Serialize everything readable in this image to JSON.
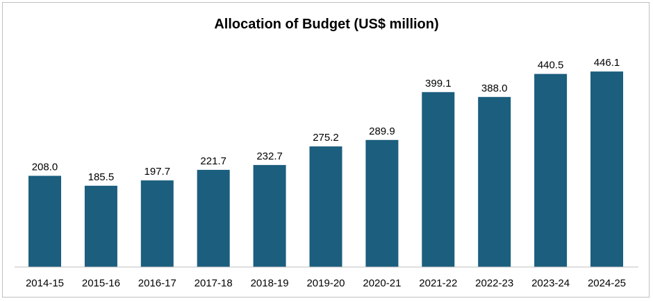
{
  "chart_data": {
    "type": "bar",
    "title": "Allocation of Budget (US$ million)",
    "xlabel": "",
    "ylabel": "",
    "categories": [
      "2014-15",
      "2015-16",
      "2016-17",
      "2017-18",
      "2018-19",
      "2019-20",
      "2020-21",
      "2021-22",
      "2022-23",
      "2023-24",
      "2024-25"
    ],
    "values": [
      208.0,
      185.5,
      197.7,
      221.7,
      232.7,
      275.2,
      289.9,
      399.1,
      388.0,
      440.5,
      446.1
    ],
    "value_labels": [
      "208.0",
      "185.5",
      "197.7",
      "221.7",
      "232.7",
      "275.2",
      "289.9",
      "399.1",
      "388.0",
      "440.5",
      "446.1"
    ],
    "ylim": [
      0,
      500
    ],
    "grid": false,
    "legend": "none",
    "bar_color": "#1b5e7e",
    "axis_color": "#bfbfbf"
  }
}
